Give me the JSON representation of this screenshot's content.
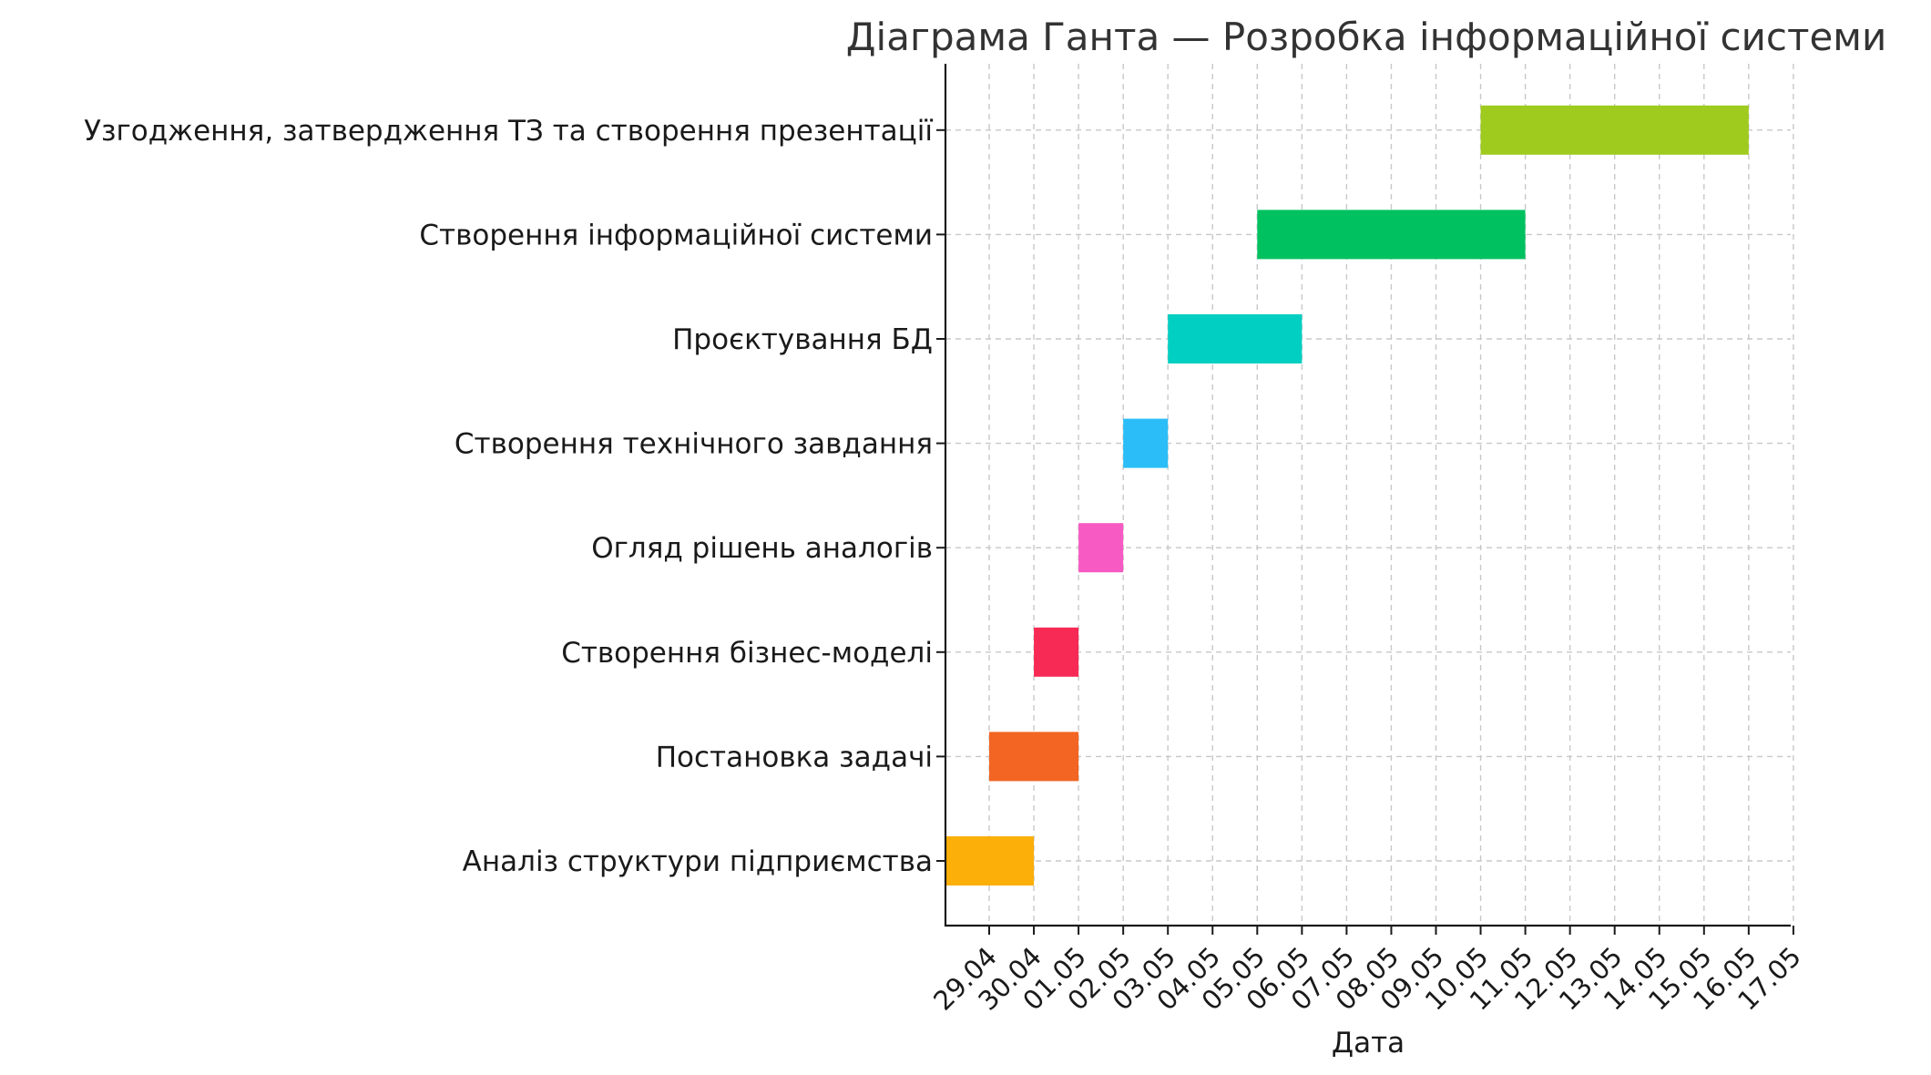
{
  "chart_data": {
    "type": "gantt",
    "title": "Діаграма Ганта — Розробка інформаційної системи",
    "xlabel": "Дата",
    "ylabel": "",
    "x_ticks": [
      "29.04",
      "30.04",
      "01.05",
      "02.05",
      "03.05",
      "04.05",
      "05.05",
      "06.05",
      "07.05",
      "08.05",
      "09.05",
      "10.05",
      "11.05",
      "12.05",
      "13.05",
      "14.05",
      "15.05",
      "16.05",
      "17.05"
    ],
    "xlim": [
      "2024-04-28",
      "2024-05-17"
    ],
    "grid": true,
    "tasks": [
      {
        "name": "Аналіз структури підприємства",
        "start": "2024-04-28",
        "end": "2024-04-30",
        "color": "#FBAF08"
      },
      {
        "name": "Постановка задачі",
        "start": "2024-04-29",
        "end": "2024-05-01",
        "color": "#F26522"
      },
      {
        "name": "Створення бізнес-моделі",
        "start": "2024-04-30",
        "end": "2024-05-01",
        "color": "#F72A55"
      },
      {
        "name": "Огляд рішень аналогів",
        "start": "2024-05-01",
        "end": "2024-05-02",
        "color": "#F75AC2"
      },
      {
        "name": "Створення технічного завдання",
        "start": "2024-05-02",
        "end": "2024-05-03",
        "color": "#2BBDF7"
      },
      {
        "name": "Проєктування БД",
        "start": "2024-05-03",
        "end": "2024-05-06",
        "color": "#00CFC1"
      },
      {
        "name": "Створення інформаційної системи",
        "start": "2024-05-05",
        "end": "2024-05-11",
        "color": "#00C160"
      },
      {
        "name": "Узгодження, затвердження ТЗ та створення презентації",
        "start": "2024-05-10",
        "end": "2024-05-16",
        "color": "#9ECB1E"
      }
    ]
  }
}
